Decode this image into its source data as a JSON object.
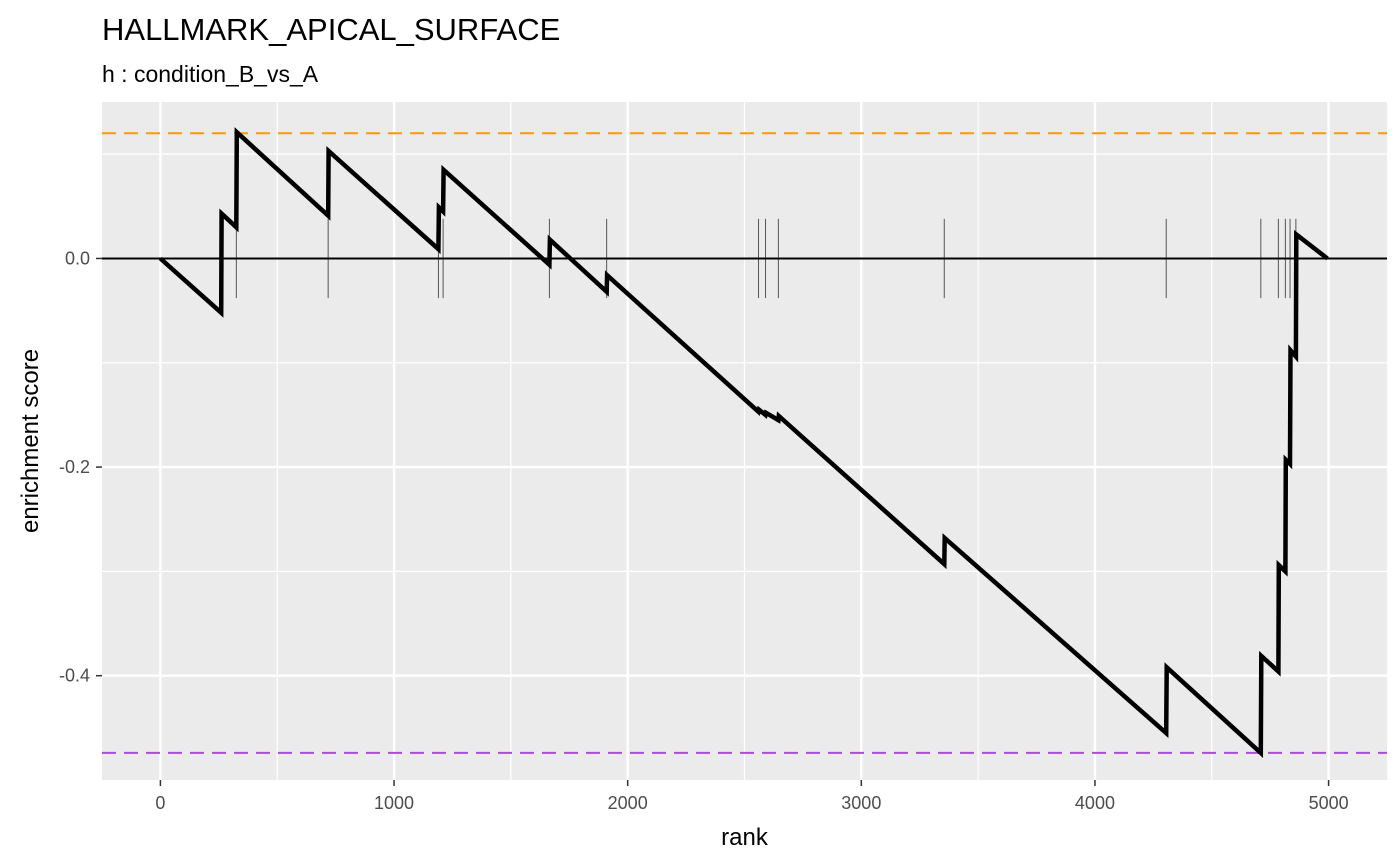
{
  "chart_data": {
    "type": "line",
    "title": "HALLMARK_APICAL_SURFACE",
    "subtitle": "h : condition_B_vs_A",
    "xlabel": "rank",
    "ylabel": "enrichment score",
    "xlim": [
      -250,
      5250
    ],
    "ylim": [
      -0.5,
      0.15
    ],
    "x_ticks": [
      0,
      1000,
      2000,
      3000,
      4000,
      5000
    ],
    "x_tick_labels": [
      "0",
      "1000",
      "2000",
      "3000",
      "4000",
      "5000"
    ],
    "y_ticks": [
      0.0,
      -0.2,
      -0.4
    ],
    "y_tick_labels": [
      "0.0",
      "-0.2",
      "-0.4"
    ],
    "grid": true,
    "background": "#ebebeb",
    "max_es": 0.12,
    "min_es": -0.474,
    "max_es_color": "#ff9900",
    "min_es_color": "#a94ed6",
    "line_color": "#000000",
    "series": [
      {
        "x": [
          0,
          260,
          262,
          325,
          327,
          718,
          720,
          1190,
          1192,
          1210,
          1212,
          1665,
          1667,
          1910,
          1912,
          2560,
          2562,
          2590,
          2592,
          2645,
          2647,
          3355,
          3357,
          4305,
          4307,
          4710,
          4712,
          4785,
          4787,
          4815,
          4817,
          4835,
          4837,
          4860,
          4862,
          4995
        ],
        "y": [
          0,
          -0.052,
          0.043,
          0.03,
          0.121,
          0.041,
          0.103,
          0.009,
          0.049,
          0.045,
          0.085,
          -0.006,
          0.018,
          -0.032,
          -0.016,
          -0.147,
          -0.145,
          -0.15,
          -0.148,
          -0.155,
          -0.151,
          -0.293,
          -0.268,
          -0.455,
          -0.392,
          -0.474,
          -0.381,
          -0.396,
          -0.294,
          -0.3,
          -0.193,
          -0.197,
          -0.088,
          -0.094,
          0.023,
          0.0
        ]
      }
    ],
    "gene_ranks": [
      260,
      325,
      718,
      1190,
      1210,
      1665,
      1910,
      2560,
      2590,
      2645,
      3355,
      4305,
      4710,
      4785,
      4815,
      4835,
      4860
    ]
  }
}
